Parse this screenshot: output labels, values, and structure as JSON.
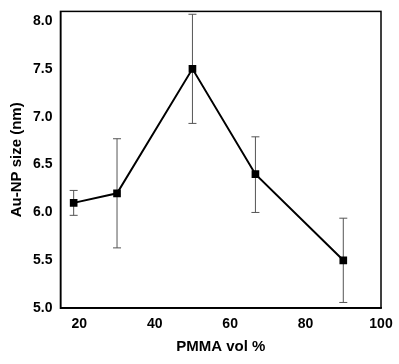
{
  "chart_data": {
    "type": "line",
    "x_label": "PMMA vol %",
    "y_label": "Au-NP size (nm)",
    "xlim": [
      15,
      100
    ],
    "xticks": [
      20,
      40,
      60,
      80,
      100
    ],
    "ylim": [
      5,
      8.1
    ],
    "yticks": [
      {
        "value": 5,
        "label": "5.0"
      },
      {
        "value": 5.5,
        "label": "5.5"
      },
      {
        "value": 6,
        "label": "6.0"
      },
      {
        "value": 6.5,
        "label": "6.5"
      },
      {
        "value": 7,
        "label": "7.0"
      },
      {
        "value": 7.5,
        "label": "7.5"
      },
      {
        "value": 8,
        "label": "8.0"
      }
    ],
    "grid": false,
    "series": [
      {
        "color": "#000000",
        "marker": "square",
        "line_style": "solid",
        "x": [
          18.5,
          30,
          50,
          66.7,
          90
        ],
        "values": [
          6.1,
          6.2,
          7.5,
          6.4,
          5.5
        ],
        "error_low": [
          0.13,
          0.57,
          0.57,
          0.4,
          0.44
        ],
        "error_high": [
          0.13,
          0.57,
          0.57,
          0.39,
          0.44
        ]
      }
    ]
  }
}
